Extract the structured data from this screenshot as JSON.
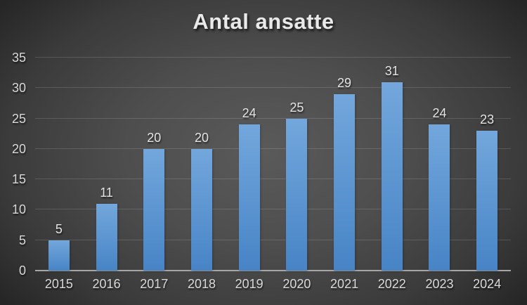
{
  "page": {
    "title": "Antal ansatte"
  },
  "chart_data": {
    "type": "bar",
    "title": "Antal ansatte",
    "categories": [
      "2015",
      "2016",
      "2017",
      "2018",
      "2019",
      "2020",
      "2021",
      "2022",
      "2023",
      "2024"
    ],
    "values": [
      5,
      11,
      20,
      20,
      24,
      25,
      29,
      31,
      24,
      23
    ],
    "xlabel": "",
    "ylabel": "",
    "ylim": [
      0,
      35
    ],
    "yticks": [
      0,
      5,
      10,
      15,
      20,
      25,
      30,
      35
    ],
    "grid": true,
    "legend": "none",
    "data_labels": true,
    "colors": {
      "bar_gradient_top": "#73A7DC",
      "bar_gradient_bottom": "#4784C6",
      "background_center": "#5A5A5A",
      "background_mid": "#4E4E4E",
      "background_edge": "#262626",
      "gridline": "rgba(255,255,255,0.14)",
      "axis_line": "#A6A6A6",
      "tick_label": "#D9D9D9",
      "data_label": "#E3E3E3",
      "title": "#E9E9E9"
    }
  }
}
